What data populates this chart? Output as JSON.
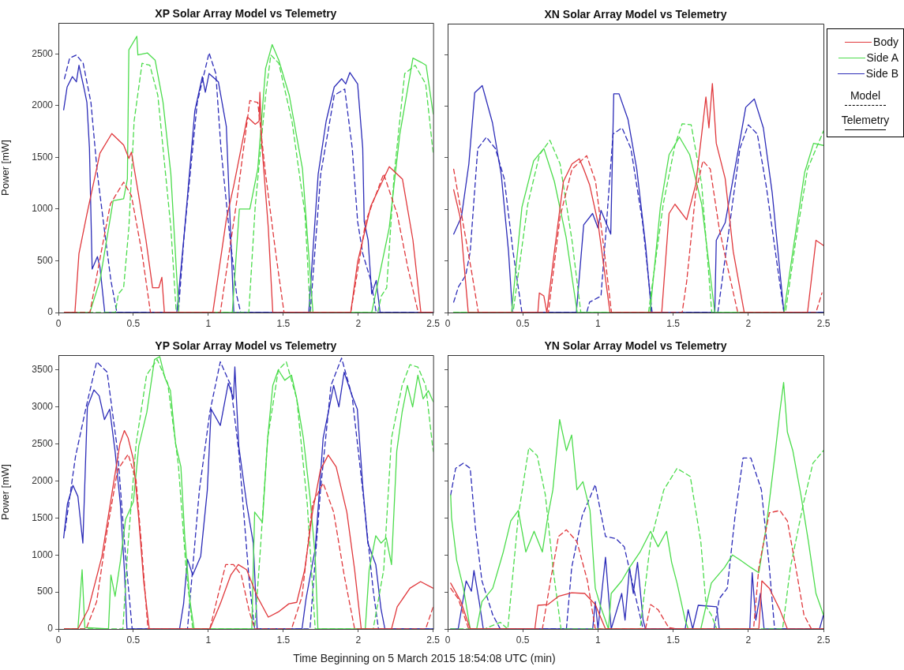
{
  "chart_data": [
    {
      "type": "line",
      "title": "XP Solar Array Model vs Telemetry",
      "ylabel": "Power [mW]",
      "xlim": [
        0,
        2.5
      ],
      "xticks": [
        0,
        0.5,
        1,
        1.5,
        2,
        2.5
      ],
      "ylim": [
        0,
        2800
      ],
      "yticks": [
        0,
        500,
        1000,
        1500,
        2000,
        2500
      ],
      "marker": "none",
      "series": [
        {
          "color": "#e0383c",
          "line_style": "solid",
          "x": [
            0.04,
            0.11,
            0.137,
            0.19,
            0.277,
            0.356,
            0.435,
            0.47,
            0.487,
            0.53,
            0.584,
            0.628,
            0.67,
            0.69,
            0.707,
            1.03,
            1.12,
            1.17,
            1.26,
            1.313,
            1.339,
            1.344,
            1.356,
            1.4,
            1.43,
            1.95,
            1.996,
            2.084,
            2.207,
            2.295,
            2.365,
            2.418,
            2.5
          ],
          "values": [
            0,
            0,
            570,
            950,
            1540,
            1730,
            1620,
            1490,
            1550,
            1180,
            700,
            240,
            240,
            340,
            0,
            0,
            900,
            1230,
            1890,
            1820,
            1850,
            2130,
            1640,
            820,
            0,
            0,
            490,
            1030,
            1410,
            1290,
            700,
            0,
            0
          ]
        },
        {
          "color": "#e0383c",
          "line_style": "dashed",
          "x": [
            0.04,
            0.21,
            0.277,
            0.347,
            0.435,
            0.487,
            0.558,
            0.614,
            1.08,
            1.19,
            1.277,
            1.33,
            1.382,
            1.45,
            1.505,
            1.95,
            2.05,
            2.17,
            2.26,
            2.33,
            2.4,
            2.5
          ],
          "values": [
            0,
            0,
            520,
            1050,
            1260,
            1130,
            570,
            0,
            0,
            1080,
            2050,
            2030,
            1340,
            570,
            0,
            0,
            880,
            1340,
            950,
            440,
            0,
            0
          ]
        },
        {
          "color": "#4cdc4c",
          "line_style": "solid",
          "x": [
            0.04,
            0.21,
            0.277,
            0.365,
            0.435,
            0.46,
            0.47,
            0.523,
            0.53,
            0.593,
            0.645,
            0.698,
            0.75,
            0.803,
            1.16,
            1.207,
            1.277,
            1.33,
            1.382,
            1.426,
            1.47,
            1.54,
            1.628,
            1.698,
            2.09,
            2.207,
            2.277,
            2.365,
            2.418,
            2.453,
            2.5
          ],
          "values": [
            0,
            0,
            310,
            1080,
            1100,
            1290,
            2540,
            2670,
            2490,
            2510,
            2440,
            2030,
            1340,
            0,
            0,
            1000,
            1000,
            1390,
            2360,
            2590,
            2440,
            2100,
            1390,
            0,
            0,
            820,
            1720,
            2460,
            2420,
            2390,
            1920
          ]
        },
        {
          "color": "#4cdc4c",
          "line_style": "dashed",
          "x": [
            0.04,
            0.38,
            0.4,
            0.435,
            0.47,
            0.505,
            0.558,
            0.61,
            0.663,
            0.75,
            0.786,
            1.27,
            1.313,
            1.382,
            1.417,
            1.47,
            1.558,
            1.645,
            1.68,
            2.13,
            2.154,
            2.19,
            2.24,
            2.31,
            2.38,
            2.45,
            2.5
          ],
          "values": [
            0,
            0,
            180,
            240,
            820,
            1850,
            2410,
            2390,
            2100,
            820,
            0,
            0,
            1030,
            2100,
            2490,
            2410,
            1850,
            950,
            0,
            0,
            160,
            240,
            1340,
            2310,
            2390,
            2210,
            1540
          ]
        },
        {
          "color": "#2c2cb8",
          "line_style": "solid",
          "x": [
            0.035,
            0.058,
            0.093,
            0.12,
            0.137,
            0.172,
            0.19,
            0.207,
            0.225,
            0.26,
            0.277,
            0.309,
            0.79,
            0.84,
            0.91,
            0.96,
            0.98,
            1.005,
            1.067,
            1.12,
            1.17,
            1.67,
            1.733,
            1.786,
            1.84,
            1.89,
            1.917,
            1.944,
            1.996,
            2.03,
            2.04,
            2.066,
            2.09,
            2.12,
            2.146,
            2.5
          ],
          "values": [
            1960,
            2180,
            2280,
            2230,
            2390,
            2160,
            2030,
            1590,
            420,
            540,
            440,
            0,
            0,
            770,
            1950,
            2280,
            2130,
            2310,
            2230,
            1800,
            0,
            0,
            1340,
            1850,
            2180,
            2260,
            2210,
            2320,
            2210,
            1590,
            880,
            700,
            180,
            310,
            0,
            0
          ]
        },
        {
          "color": "#2c2cb8",
          "line_style": "dashed",
          "x": [
            0.04,
            0.075,
            0.12,
            0.165,
            0.217,
            0.26,
            0.305,
            0.35,
            0.39,
            0.8,
            0.84,
            0.926,
            1.005,
            1.05,
            1.084,
            1.137,
            1.19,
            1.216,
            1.68,
            1.75,
            1.84,
            1.91,
            1.96,
            1.996,
            2.03,
            2.084,
            2.12,
            2.5
          ],
          "values": [
            2260,
            2460,
            2490,
            2410,
            2030,
            1340,
            820,
            310,
            0,
            0,
            770,
            2030,
            2510,
            2310,
            1590,
            820,
            160,
            0,
            0,
            1340,
            2100,
            2160,
            1590,
            880,
            570,
            310,
            0,
            0
          ]
        }
      ]
    },
    {
      "type": "line",
      "title": "XN Solar Array Model vs Telemetry",
      "xlim": [
        0,
        2.5
      ],
      "xticks": [
        0,
        0.5,
        1,
        1.5,
        2,
        2.5
      ],
      "ylim": [
        0,
        2800
      ],
      "yticks": [
        0,
        500,
        1000,
        1500,
        2000,
        2500
      ],
      "tick_labels": "x",
      "marker": "none",
      "legend": "right",
      "annotations": [
        "Model",
        "Telemetry"
      ],
      "series": [
        {
          "name": "Body",
          "color": "#e0383c",
          "line_style": "solid",
          "x": [
            0.04,
            0.082,
            0.11,
            0.137,
            0.6,
            0.61,
            0.64,
            0.66,
            0.71,
            0.77,
            0.827,
            0.876,
            0.905,
            0.944,
            1.0,
            1.08,
            1.424,
            1.473,
            1.512,
            1.59,
            1.65,
            1.69,
            1.718,
            1.738,
            1.761,
            1.787,
            1.846,
            1.9,
            1.973,
            2.394,
            2.45,
            2.5
          ],
          "values": [
            1190,
            930,
            450,
            0,
            0,
            190,
            160,
            0,
            590,
            1270,
            1440,
            1490,
            1390,
            1240,
            870,
            0,
            0,
            960,
            1050,
            900,
            1240,
            1730,
            2090,
            1790,
            2220,
            1640,
            1300,
            590,
            0,
            0,
            700,
            650
          ]
        },
        {
          "color": "#e0383c",
          "line_style": "dashed",
          "x": [
            0.04,
            0.102,
            0.16,
            0.204,
            0.67,
            0.748,
            0.827,
            0.925,
            0.984,
            1.042,
            1.09,
            1.56,
            1.59,
            1.65,
            1.698,
            1.747,
            1.806,
            1.865,
            1.93,
            2.45,
            2.49
          ],
          "values": [
            1390,
            870,
            390,
            0,
            0,
            930,
            1390,
            1520,
            1270,
            590,
            0,
            0,
            300,
            1160,
            1470,
            1390,
            820,
            420,
            0,
            0,
            190
          ]
        },
        {
          "name": "Side A",
          "color": "#4cdc4c",
          "line_style": "solid",
          "x": [
            0.04,
            0.425,
            0.494,
            0.572,
            0.64,
            0.71,
            0.788,
            0.862,
            1.346,
            1.415,
            1.473,
            1.542,
            1.61,
            1.69,
            1.777,
            2.237,
            2.296,
            2.375,
            2.434,
            2.5
          ],
          "values": [
            0,
            0,
            1020,
            1470,
            1590,
            1270,
            730,
            0,
            0,
            1020,
            1530,
            1700,
            1530,
            1050,
            0,
            0,
            590,
            1360,
            1640,
            1620
          ]
        },
        {
          "color": "#4cdc4c",
          "line_style": "dashed",
          "x": [
            0.04,
            0.435,
            0.533,
            0.611,
            0.68,
            0.748,
            0.827,
            0.886,
            1.336,
            1.434,
            1.512,
            1.56,
            1.62,
            1.69,
            1.757,
            2.247,
            2.316,
            2.394,
            2.5
          ],
          "values": [
            0,
            0,
            1050,
            1530,
            1670,
            1440,
            700,
            0,
            0,
            1050,
            1620,
            1830,
            1820,
            1240,
            0,
            0,
            700,
            1390,
            1760
          ]
        },
        {
          "name": "Side B",
          "color": "#2c2cb8",
          "line_style": "solid",
          "x": [
            0.04,
            0.092,
            0.141,
            0.18,
            0.23,
            0.298,
            0.357,
            0.405,
            0.431,
            0.856,
            0.905,
            0.964,
            1.0,
            1.02,
            1.085,
            1.105,
            1.14,
            1.2,
            1.258,
            1.317,
            1.356,
            1.777,
            1.787,
            1.846,
            1.924,
            1.983,
            2.04,
            2.1,
            2.159,
            2.237,
            2.5
          ],
          "values": [
            760,
            930,
            1440,
            2130,
            2200,
            1840,
            1330,
            590,
            0,
            0,
            850,
            960,
            820,
            990,
            760,
            2120,
            2120,
            1870,
            1390,
            650,
            0,
            0,
            700,
            870,
            1500,
            1990,
            2070,
            1790,
            1160,
            0,
            0
          ]
        },
        {
          "color": "#2c2cb8",
          "line_style": "dashed",
          "x": [
            0.04,
            0.072,
            0.12,
            0.15,
            0.2,
            0.258,
            0.317,
            0.376,
            0.435,
            0.494,
            0.925,
            0.944,
            1.02,
            1.05,
            1.1,
            1.16,
            1.219,
            1.297,
            1.36,
            1.797,
            1.865,
            1.944,
            2.0,
            2.06,
            2.12,
            2.18,
            2.237,
            2.5
          ],
          "values": [
            100,
            250,
            360,
            590,
            1590,
            1700,
            1590,
            1300,
            590,
            0,
            0,
            100,
            160,
            730,
            1730,
            1790,
            1590,
            870,
            0,
            0,
            730,
            1590,
            1820,
            1730,
            1220,
            590,
            0,
            0
          ]
        }
      ]
    },
    {
      "type": "line",
      "title": "YP Solar Array Model vs Telemetry",
      "ylabel": "Power [mW]",
      "xlabel": "Time Beginning on 5 March 2015 18:54:08 UTC (min)",
      "xlim": [
        0,
        2.5
      ],
      "xticks": [
        0,
        0.5,
        1,
        1.5,
        2,
        2.5
      ],
      "ylim": [
        0,
        3700
      ],
      "yticks": [
        0,
        500,
        1000,
        1500,
        2000,
        2500,
        3000,
        3500
      ],
      "marker": "none",
      "series": [
        {
          "color": "#e0383c",
          "line_style": "solid",
          "x": [
            0.04,
            0.13,
            0.2,
            0.29,
            0.36,
            0.41,
            0.44,
            0.465,
            0.5,
            0.535,
            0.57,
            0.606,
            1.01,
            1.08,
            1.15,
            1.2,
            1.256,
            1.326,
            1.4,
            1.467,
            1.537,
            1.59,
            1.643,
            1.695,
            1.748,
            1.8,
            1.853,
            1.924,
            1.976,
            2.02,
            2.222,
            2.26,
            2.345,
            2.416,
            2.5
          ],
          "values": [
            0,
            0,
            270,
            980,
            1870,
            2500,
            2680,
            2580,
            2290,
            1510,
            620,
            0,
            0,
            340,
            730,
            870,
            800,
            440,
            160,
            230,
            340,
            360,
            800,
            1580,
            2150,
            2350,
            2190,
            1580,
            800,
            0,
            0,
            300,
            550,
            640,
            550
          ]
        },
        {
          "color": "#e0383c",
          "line_style": "dashed",
          "x": [
            0.04,
            0.185,
            0.255,
            0.325,
            0.395,
            0.465,
            0.518,
            0.553,
            0.597,
            1.01,
            1.063,
            1.116,
            1.168,
            1.22,
            1.274,
            1.31,
            1.555,
            1.625,
            1.695,
            1.766,
            1.836,
            1.906,
            1.976,
            2.45,
            2.5
          ],
          "values": [
            0,
            0,
            370,
            1330,
            2150,
            2360,
            2010,
            1160,
            0,
            0,
            440,
            870,
            870,
            730,
            230,
            0,
            0,
            440,
            1690,
            1970,
            1580,
            730,
            0,
            0,
            300
          ]
        },
        {
          "color": "#4cdc4c",
          "line_style": "solid",
          "x": [
            0.04,
            0.13,
            0.158,
            0.176,
            0.334,
            0.35,
            0.378,
            0.413,
            0.448,
            0.5,
            0.536,
            0.59,
            0.641,
            0.676,
            0.711,
            0.747,
            0.782,
            0.817,
            0.843,
            0.878,
            0.905,
            1.29,
            1.309,
            1.361,
            1.396,
            1.43,
            1.467,
            1.51,
            1.555,
            1.59,
            1.634,
            1.678,
            1.713,
            1.731,
            2.047,
            2.073,
            2.117,
            2.152,
            2.187,
            2.222,
            2.257,
            2.293,
            2.328,
            2.363,
            2.398,
            2.433,
            2.468,
            2.5
          ],
          "values": [
            0,
            0,
            800,
            20,
            0,
            730,
            440,
            910,
            1480,
            1720,
            2470,
            2930,
            3640,
            3680,
            3390,
            3220,
            2500,
            2190,
            1230,
            370,
            0,
            0,
            1580,
            1440,
            2580,
            3290,
            3500,
            3360,
            3430,
            3110,
            2580,
            1790,
            980,
            0,
            0,
            800,
            1260,
            1160,
            1230,
            870,
            2400,
            2930,
            3290,
            3000,
            3430,
            3110,
            3220,
            3070
          ]
        },
        {
          "color": "#4cdc4c",
          "line_style": "dashed",
          "x": [
            0.04,
            0.43,
            0.465,
            0.518,
            0.588,
            0.659,
            0.729,
            0.8,
            0.852,
            0.896,
            1.309,
            1.344,
            1.396,
            1.467,
            1.52,
            1.59,
            1.66,
            1.713,
            2.1,
            2.17,
            2.222,
            2.293,
            2.345,
            2.398,
            2.45,
            2.5
          ],
          "values": [
            0,
            0,
            1160,
            2500,
            3430,
            3640,
            3320,
            2220,
            800,
            0,
            0,
            980,
            2580,
            3500,
            3610,
            3110,
            1690,
            0,
            0,
            800,
            2580,
            3290,
            3570,
            3540,
            3290,
            2400
          ]
        },
        {
          "color": "#2c2cb8",
          "line_style": "solid",
          "x": [
            0.035,
            0.06,
            0.097,
            0.13,
            0.163,
            0.193,
            0.237,
            0.272,
            0.307,
            0.342,
            0.378,
            0.413,
            0.44,
            0.457,
            0.808,
            0.835,
            0.861,
            0.896,
            0.949,
            0.993,
            1.019,
            1.08,
            1.133,
            1.168,
            1.177,
            1.203,
            1.256,
            1.3,
            1.326,
            1.625,
            1.652,
            1.713,
            1.766,
            1.836,
            1.871,
            1.906,
            1.959,
            1.994,
            2.03,
            2.064,
            2.117,
            2.152,
            2.178,
            2.5
          ],
          "values": [
            1230,
            1690,
            1940,
            1790,
            1160,
            3000,
            3230,
            3150,
            2830,
            2970,
            2400,
            1690,
            800,
            0,
            0,
            340,
            940,
            730,
            980,
            1870,
            2970,
            2750,
            3320,
            3110,
            3540,
            2470,
            1690,
            1160,
            0,
            0,
            410,
            1080,
            2580,
            3290,
            3000,
            3470,
            3150,
            2970,
            1940,
            1160,
            870,
            270,
            0,
            0
          ]
        },
        {
          "color": "#2c2cb8",
          "line_style": "dashed",
          "x": [
            0.044,
            0.114,
            0.185,
            0.255,
            0.325,
            0.395,
            0.448,
            0.492,
            0.861,
            0.94,
            1.01,
            1.08,
            1.15,
            1.203,
            1.274,
            1.309,
            1.678,
            1.748,
            1.818,
            1.889,
            1.959,
            2.03,
            2.1,
            2.135,
            2.5
          ],
          "values": [
            1330,
            2330,
            3000,
            3610,
            3470,
            2400,
            980,
            0,
            0,
            1870,
            2930,
            3610,
            3290,
            2400,
            620,
            0,
            0,
            1870,
            3290,
            3660,
            3150,
            1870,
            520,
            0,
            0
          ]
        }
      ]
    },
    {
      "type": "line",
      "title": "YN Solar Array Model vs Telemetry",
      "xlim": [
        0,
        2.5
      ],
      "xticks": [
        0,
        0.5,
        1,
        1.5,
        2,
        2.5
      ],
      "ylim": [
        0,
        3700
      ],
      "yticks": [
        0,
        500,
        1000,
        1500,
        2000,
        2500,
        3000,
        3500
      ],
      "tick_labels": "x",
      "marker": "none",
      "series": [
        {
          "color": "#e0383c",
          "line_style": "solid",
          "x": [
            0.02,
            0.088,
            0.15,
            0.58,
            0.6,
            0.667,
            0.737,
            0.825,
            0.912,
            0.982,
            1.05,
            2.07,
            2.09,
            2.14,
            2.21,
            2.26,
            2.5
          ],
          "values": [
            620,
            370,
            0,
            0,
            320,
            330,
            440,
            490,
            480,
            330,
            0,
            0,
            650,
            550,
            260,
            0,
            0
          ]
        },
        {
          "color": "#e0383c",
          "line_style": "dashed",
          "x": [
            0.02,
            0.07,
            0.14,
            0.63,
            0.684,
            0.737,
            0.79,
            0.86,
            0.93,
            0.982,
            1.316,
            1.35,
            1.4,
            1.47,
            1.526,
            2.035,
            2.07,
            2.14,
            2.21,
            2.26,
            2.316,
            2.37,
            2.42,
            2.5
          ],
          "values": [
            550,
            410,
            0,
            0,
            650,
            1250,
            1340,
            1180,
            650,
            0,
            0,
            330,
            260,
            20,
            0,
            0,
            830,
            1570,
            1600,
            1460,
            830,
            190,
            0,
            0
          ]
        },
        {
          "color": "#4cdc4c",
          "line_style": "solid",
          "x": [
            0.02,
            0.026,
            0.06,
            0.105,
            0.15,
            0.193,
            0.228,
            0.3,
            0.37,
            0.42,
            0.47,
            0.52,
            0.575,
            0.63,
            0.667,
            0.7,
            0.745,
            0.79,
            0.825,
            0.86,
            0.9,
            0.947,
            0.982,
            1.018,
            1.07,
            1.088,
            1.158,
            1.21,
            1.28,
            1.35,
            1.4,
            1.456,
            1.49,
            1.526,
            1.58,
            1.6,
            1.684,
            1.754,
            1.842,
            1.895,
            1.947,
            2.017,
            2.07,
            2.12,
            2.175,
            2.21,
            2.235,
            2.26,
            2.296,
            2.35,
            2.4,
            2.45,
            2.5
          ],
          "values": [
            1810,
            1500,
            930,
            550,
            0,
            0,
            370,
            550,
            1040,
            1460,
            1600,
            1040,
            1320,
            1040,
            1530,
            1880,
            2830,
            2410,
            2620,
            1880,
            1990,
            1600,
            550,
            300,
            0,
            480,
            650,
            830,
            1040,
            1320,
            1110,
            1320,
            900,
            620,
            120,
            0,
            0,
            620,
            830,
            1000,
            930,
            830,
            760,
            1390,
            2310,
            2940,
            3330,
            2660,
            2410,
            1810,
            1180,
            480,
            190
          ]
        },
        {
          "color": "#4cdc4c",
          "line_style": "dashed",
          "x": [
            0.02,
            0.245,
            0.35,
            0.4,
            0.47,
            0.54,
            0.596,
            0.65,
            0.7,
            0.754,
            1.28,
            1.35,
            1.438,
            1.526,
            1.614,
            1.684,
            1.72,
            1.754,
            1.79,
            2.228,
            2.28,
            2.368,
            2.43,
            2.5
          ],
          "values": [
            0,
            0,
            90,
            0,
            1530,
            2450,
            2340,
            1810,
            830,
            0,
            0,
            1180,
            1880,
            2170,
            2060,
            1180,
            300,
            190,
            0,
            0,
            830,
            1710,
            2240,
            2410
          ]
        },
        {
          "color": "#2c2cb8",
          "line_style": "solid",
          "x": [
            0.02,
            0.07,
            0.123,
            0.158,
            0.175,
            0.21,
            0.237,
            0.965,
            0.982,
            1.0,
            1.05,
            1.088,
            1.158,
            1.18,
            1.21,
            1.235,
            1.263,
            1.3,
            1.316,
            1.58,
            1.6,
            1.63,
            1.667,
            1.79,
            1.807,
            2.01,
            2.026,
            2.05,
            2.08,
            2.105,
            2.474,
            2.5
          ],
          "values": [
            0,
            0,
            650,
            510,
            790,
            370,
            0,
            0,
            370,
            0,
            970,
            0,
            480,
            120,
            830,
            480,
            900,
            120,
            0,
            0,
            260,
            0,
            320,
            300,
            0,
            0,
            760,
            120,
            480,
            0,
            0,
            190
          ]
        },
        {
          "color": "#2c2cb8",
          "line_style": "dashed",
          "x": [
            0.02,
            0.053,
            0.105,
            0.15,
            0.185,
            0.228,
            0.3,
            0.35,
            0.79,
            0.825,
            0.895,
            0.982,
            1.05,
            1.12,
            1.175,
            1.245,
            1.3,
            1.772,
            1.807,
            1.86,
            1.912,
            1.965,
            2.017,
            2.087,
            2.14,
            2.175,
            2.5
          ],
          "values": [
            1810,
            2170,
            2240,
            2170,
            1360,
            650,
            190,
            0,
            0,
            830,
            1530,
            1950,
            1250,
            1220,
            1110,
            480,
            0,
            0,
            410,
            550,
            1530,
            2310,
            2310,
            1880,
            830,
            0,
            0
          ]
        }
      ]
    }
  ]
}
